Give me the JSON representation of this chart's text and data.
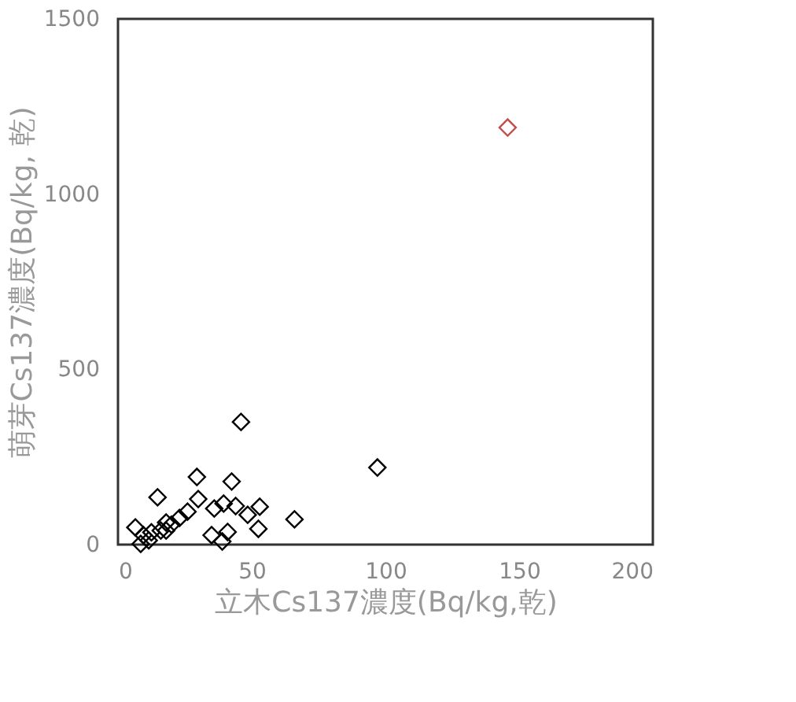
{
  "chart_data": {
    "type": "scatter",
    "xlabel": "立木Cs137濃度(Bq/kg,乾)",
    "ylabel": "萌芽Cs137濃度(Bq/kg, 乾)",
    "xlim": [
      0,
      200
    ],
    "ylim": [
      0,
      1500
    ],
    "xticks": [
      0,
      50,
      100,
      150,
      200
    ],
    "yticks": [
      0,
      500,
      1000,
      1500
    ],
    "grid": false,
    "legend": false,
    "marker": "diamond",
    "series": [
      {
        "color": "#000000",
        "x": [
          46,
          97,
          66,
          29.5,
          42.5,
          14.8,
          30,
          53,
          39.5,
          36,
          44,
          48.5,
          52.5,
          41,
          35,
          39,
          26,
          23,
          18,
          16,
          12.5,
          6.5,
          9.5,
          11.5,
          8.5,
          18,
          20
        ],
        "values": [
          350,
          220,
          72,
          193,
          180,
          135,
          130,
          108,
          117,
          103,
          110,
          85,
          45,
          36,
          27,
          9,
          94,
          76,
          63,
          40,
          35,
          49,
          27,
          12,
          2,
          40,
          57
        ]
      },
      {
        "color": "#c0504d",
        "x": [
          145.7
        ],
        "values": [
          1190
        ]
      }
    ]
  }
}
